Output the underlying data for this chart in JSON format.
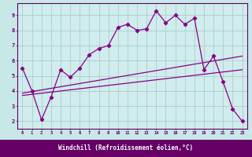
{
  "main_line_x": [
    0,
    1,
    2,
    3,
    4,
    5,
    6,
    7,
    8,
    9,
    10,
    11,
    12,
    13,
    14,
    15,
    16,
    17,
    18,
    19,
    20,
    21,
    22,
    23
  ],
  "main_line_y": [
    5.5,
    4.0,
    2.1,
    3.6,
    5.4,
    4.9,
    5.5,
    6.4,
    6.8,
    7.0,
    8.2,
    8.4,
    8.0,
    8.1,
    9.3,
    8.5,
    9.0,
    8.4,
    8.8,
    5.4,
    6.3,
    4.6,
    2.8,
    2.0
  ],
  "trend1_x": [
    0,
    23
  ],
  "trend1_y": [
    3.85,
    6.3
  ],
  "trend2_x": [
    0,
    23
  ],
  "trend2_y": [
    3.7,
    5.4
  ],
  "line_color": "#880088",
  "bg_color": "#c8e8e8",
  "grid_color": "#aacece",
  "plot_bg": "#d0ecec",
  "axis_label_bg": "#660066",
  "axis_label_fg": "#ffffff",
  "tick_color": "#660066",
  "xlabel": "Windchill (Refroidissement éolien,°C)",
  "xlim": [
    -0.5,
    23.5
  ],
  "ylim": [
    1.5,
    9.8
  ],
  "xticks": [
    0,
    1,
    2,
    3,
    4,
    5,
    6,
    7,
    8,
    9,
    10,
    11,
    12,
    13,
    14,
    15,
    16,
    17,
    18,
    19,
    20,
    21,
    22,
    23
  ],
  "yticks": [
    2,
    3,
    4,
    5,
    6,
    7,
    8,
    9
  ]
}
